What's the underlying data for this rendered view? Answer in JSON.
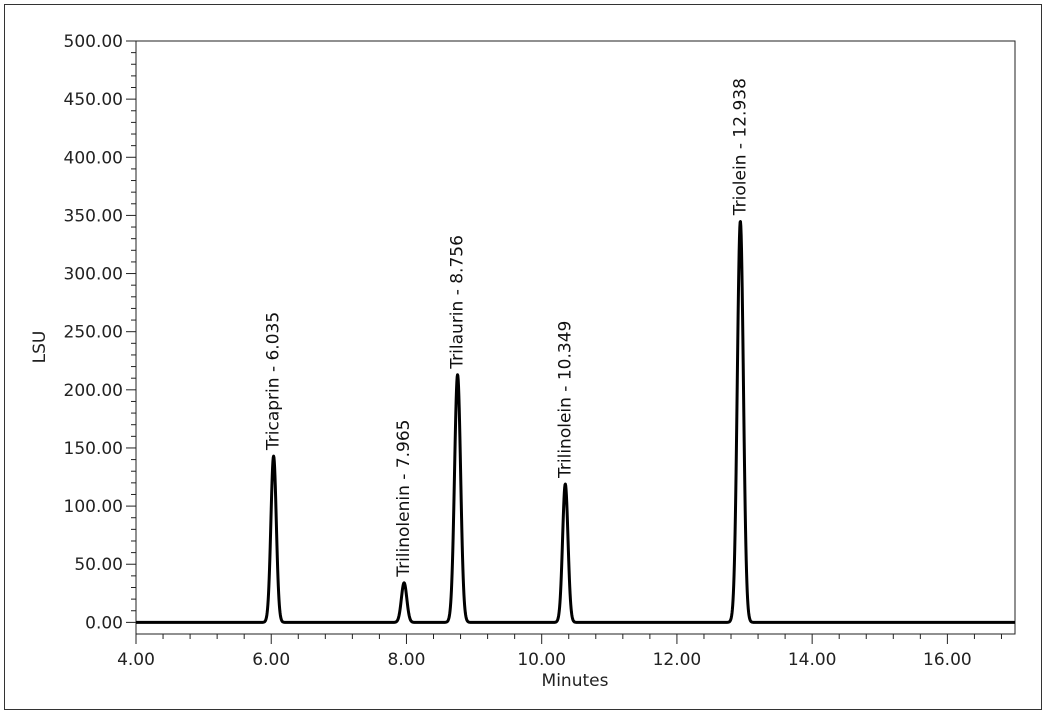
{
  "chart_data": {
    "type": "line",
    "title": "",
    "xlabel": "Minutes",
    "ylabel": "LSU",
    "xlim": [
      4.0,
      17.0
    ],
    "ylim": [
      -10,
      500
    ],
    "x_ticks": [
      4.0,
      6.0,
      8.0,
      10.0,
      12.0,
      14.0,
      16.0
    ],
    "x_tick_labels": [
      "4.00",
      "6.00",
      "8.00",
      "10.00",
      "12.00",
      "14.00",
      "16.00"
    ],
    "y_ticks": [
      0,
      50,
      100,
      150,
      200,
      250,
      300,
      350,
      400,
      450,
      500
    ],
    "y_tick_labels": [
      "0.00",
      "50.00",
      "100.00",
      "150.00",
      "200.00",
      "250.00",
      "300.00",
      "350.00",
      "400.00",
      "450.00",
      "500.00"
    ],
    "baseline": 0,
    "grid": false,
    "peaks": [
      {
        "label": "Tricaprin - 6.035",
        "x": 6.035,
        "y": 143,
        "width": 0.04
      },
      {
        "label": "Trilinolenin - 7.965",
        "x": 7.965,
        "y": 34,
        "width": 0.04
      },
      {
        "label": "Trilaurin - 8.756",
        "x": 8.756,
        "y": 213,
        "width": 0.045
      },
      {
        "label": "Trilinolein - 10.349",
        "x": 10.349,
        "y": 119,
        "width": 0.04
      },
      {
        "label": "Triolein - 12.938",
        "x": 12.938,
        "y": 345,
        "width": 0.045
      }
    ]
  }
}
